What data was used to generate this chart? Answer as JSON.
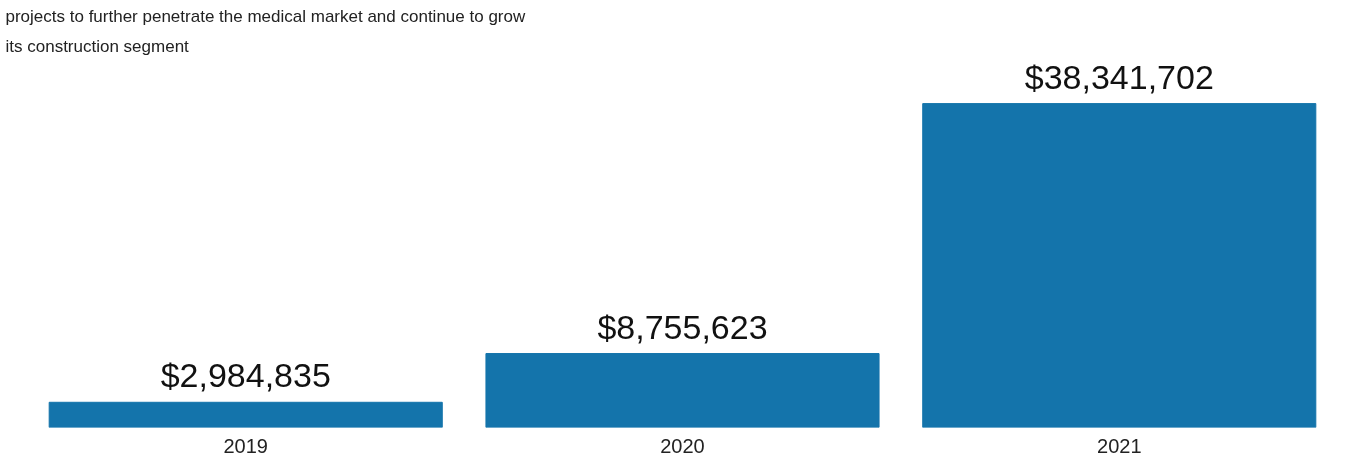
{
  "chart_data": {
    "type": "bar",
    "title": "projects to further penetrate the medical market and continue to grow\nits construction segment",
    "categories": [
      "2019",
      "2020",
      "2021"
    ],
    "values": [
      2984835,
      8755623,
      38341702
    ],
    "value_labels": [
      "$2,984,835",
      "$8,755,623",
      "$38,341,702"
    ],
    "color": "#1474ab",
    "grid": false,
    "tick_labels": "x"
  }
}
